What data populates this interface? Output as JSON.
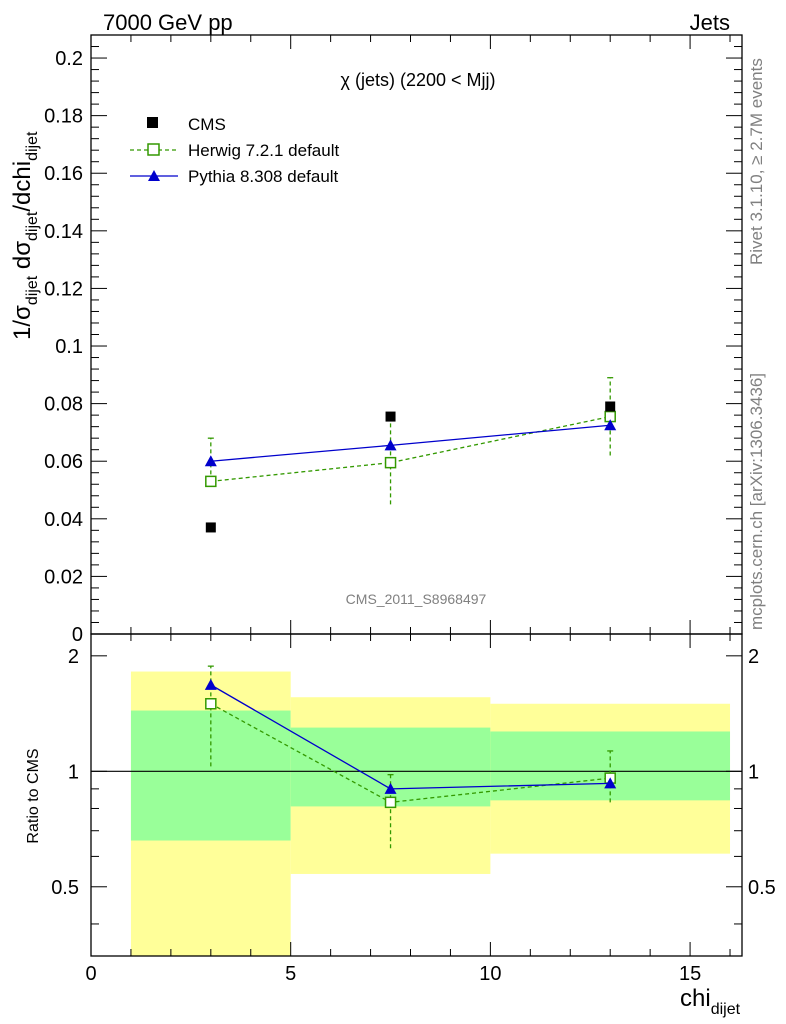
{
  "header": {
    "left": "7000 GeV pp",
    "right": "Jets"
  },
  "side_labels": {
    "rivet": "Rivet 3.1.10, ≥ 2.7M events",
    "mcplots": "mcplots.cern.ch [arXiv:1306.3436]"
  },
  "chart_data": [
    {
      "type": "scatter",
      "title": "χ (jets) (2200 < Mjj)",
      "ylabel": "1/σ_dijet dσ_dijet/dchi_dijet",
      "watermark": "CMS_2011_S8968497",
      "xlim": [
        0,
        16.3
      ],
      "ylim": [
        0,
        0.208
      ],
      "yticks": [
        "0",
        "0.02",
        "0.04",
        "0.06",
        "0.08",
        "0.1",
        "0.12",
        "0.14",
        "0.16",
        "0.18",
        "0.2"
      ],
      "legend_position": "top-left",
      "legend": [
        "CMS",
        "Herwig 7.2.1 default",
        "Pythia 8.308 default"
      ],
      "series": [
        {
          "name": "CMS",
          "color": "#000000",
          "marker": "filled-square",
          "x": [
            3.0,
            7.5,
            13.0
          ],
          "y": [
            0.037,
            0.0755,
            0.079
          ]
        },
        {
          "name": "Herwig 7.2.1 default",
          "color": "#339900",
          "marker": "open-square",
          "line": "dashed",
          "x": [
            3.0,
            7.5,
            13.0
          ],
          "y": [
            0.053,
            0.0595,
            0.0755
          ],
          "yerr_low": [
            0.053,
            0.045,
            0.062
          ],
          "yerr_high": [
            0.068,
            0.0745,
            0.089
          ]
        },
        {
          "name": "Pythia 8.308 default",
          "color": "#0000cc",
          "marker": "filled-triangle",
          "line": "solid",
          "x": [
            3.0,
            7.5,
            13.0
          ],
          "y": [
            0.06,
            0.0655,
            0.0725
          ]
        }
      ]
    },
    {
      "type": "scatter",
      "ylabel": "Ratio to CMS",
      "xlabel": "chi_dijet",
      "xlim": [
        0,
        16.3
      ],
      "ylim": [
        0.33,
        2.28
      ],
      "yticks": [
        "0.5",
        "1",
        "2"
      ],
      "xticks": [
        "0",
        "5",
        "10",
        "15"
      ],
      "reference_line": 1,
      "bands": [
        {
          "x": [
            1,
            5
          ],
          "yellow": [
            0.33,
            1.82
          ],
          "green": [
            0.66,
            1.44
          ]
        },
        {
          "x": [
            5,
            10
          ],
          "yellow": [
            0.54,
            1.56
          ],
          "green": [
            0.81,
            1.3
          ]
        },
        {
          "x": [
            10,
            16
          ],
          "yellow": [
            0.61,
            1.5
          ],
          "green": [
            0.84,
            1.27
          ]
        }
      ],
      "band_colors": {
        "outer": "#ffff99",
        "inner": "#99ff99"
      },
      "series": [
        {
          "name": "Herwig 7.2.1 default",
          "color": "#339900",
          "marker": "open-square",
          "line": "dashed",
          "x": [
            3.0,
            7.5,
            13.0
          ],
          "y": [
            1.5,
            0.83,
            0.96
          ],
          "yerr_low": [
            1.03,
            0.63,
            0.83
          ],
          "yerr_high": [
            1.88,
            0.98,
            1.13
          ]
        },
        {
          "name": "Pythia 8.308 default",
          "color": "#0000cc",
          "marker": "filled-triangle",
          "line": "solid",
          "x": [
            3.0,
            7.5,
            13.0
          ],
          "y": [
            1.68,
            0.9,
            0.93
          ]
        }
      ]
    }
  ]
}
